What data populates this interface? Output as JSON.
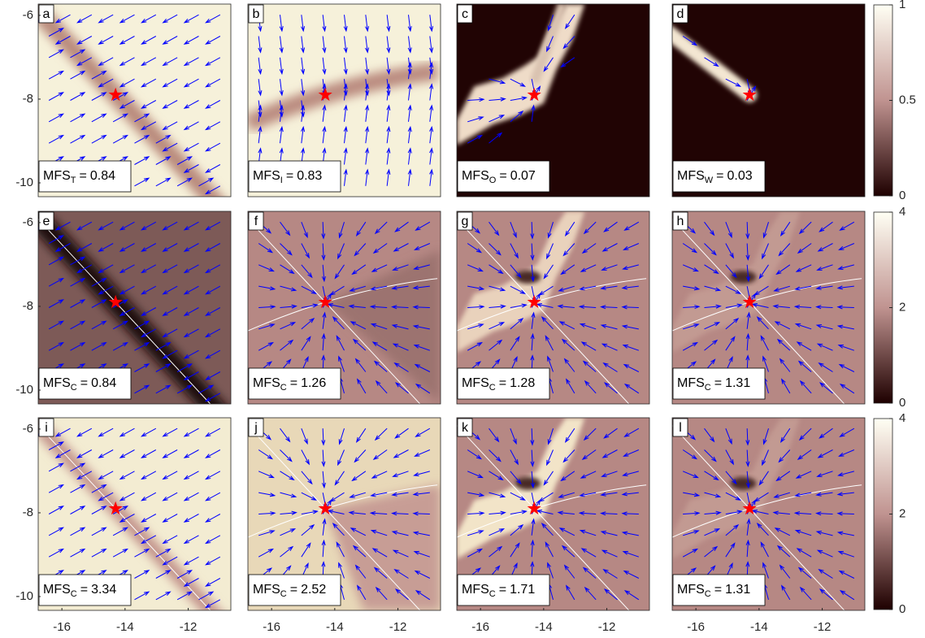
{
  "chart_data": [
    {
      "type": "heatmap",
      "label": "a",
      "annotation": {
        "prefix": "MFS",
        "subscript": "T",
        "sign": "=",
        "value": 0.84
      },
      "xlim": [
        -16.75,
        -10.65
      ],
      "ylim": [
        -10.33,
        -5.73
      ],
      "yticks": [
        -10,
        -8,
        -6
      ],
      "marker": {
        "x": -14.3,
        "y": -7.9,
        "color": "#ff0000"
      },
      "background": "#f6f1da",
      "quiver_color": "#0000ff"
    },
    {
      "type": "heatmap",
      "label": "b",
      "annotation": {
        "prefix": "MFS",
        "subscript": "I",
        "sign": "=",
        "value": 0.83
      },
      "xlim": [
        -16.75,
        -10.65
      ],
      "ylim": [
        -10.33,
        -5.73
      ],
      "marker": {
        "x": -14.3,
        "y": -7.9,
        "color": "#ff0000"
      },
      "background": "#f6f1da",
      "quiver_color": "#0000ff"
    },
    {
      "type": "heatmap",
      "label": "c",
      "annotation": {
        "prefix": "MFS",
        "subscript": "O",
        "sign": "=",
        "value": 0.07
      },
      "xlim": [
        -16.75,
        -10.65
      ],
      "ylim": [
        -10.33,
        -5.73
      ],
      "marker": {
        "x": -14.3,
        "y": -7.9,
        "color": "#ff0000"
      },
      "background": "#210404",
      "quiver_color": "#0000ff"
    },
    {
      "type": "heatmap",
      "label": "d",
      "annotation": {
        "prefix": "MFS",
        "subscript": "W",
        "sign": "=",
        "value": 0.03
      },
      "xlim": [
        -16.75,
        -10.65
      ],
      "ylim": [
        -10.33,
        -5.73
      ],
      "marker": {
        "x": -14.3,
        "y": -7.9,
        "color": "#ff0000"
      },
      "background": "#210404",
      "quiver_color": "#0000ff",
      "colorbar": {
        "clim": [
          0,
          1
        ],
        "ticks": [
          0,
          0.5,
          1
        ],
        "colormap": [
          "#1e0000",
          "#c09390",
          "#fffff4"
        ]
      }
    },
    {
      "type": "heatmap",
      "label": "e",
      "annotation": {
        "prefix": "MFS",
        "subscript": "C",
        "sign": "=",
        "value": 0.84
      },
      "xlim": [
        -16.75,
        -10.65
      ],
      "ylim": [
        -10.33,
        -5.73
      ],
      "yticks": [
        -10,
        -8,
        -6
      ],
      "marker": {
        "x": -14.3,
        "y": -7.9,
        "color": "#ff0000"
      },
      "background": "#7d5a57",
      "quiver_color": "#0000ff"
    },
    {
      "type": "heatmap",
      "label": "f",
      "annotation": {
        "prefix": "MFS",
        "subscript": "C",
        "sign": "=",
        "value": 1.26
      },
      "xlim": [
        -16.75,
        -10.65
      ],
      "ylim": [
        -10.33,
        -5.73
      ],
      "marker": {
        "x": -14.3,
        "y": -7.9,
        "color": "#ff0000"
      },
      "background": "#b68884",
      "quiver_color": "#0000ff"
    },
    {
      "type": "heatmap",
      "label": "g",
      "annotation": {
        "prefix": "MFS",
        "subscript": "C",
        "sign": "=",
        "value": 1.28
      },
      "xlim": [
        -16.75,
        -10.65
      ],
      "ylim": [
        -10.33,
        -5.73
      ],
      "marker": {
        "x": -14.3,
        "y": -7.9,
        "color": "#ff0000"
      },
      "background": "#b68884",
      "quiver_color": "#0000ff"
    },
    {
      "type": "heatmap",
      "label": "h",
      "annotation": {
        "prefix": "MFS",
        "subscript": "C",
        "sign": "=",
        "value": 1.31
      },
      "xlim": [
        -16.75,
        -10.65
      ],
      "ylim": [
        -10.33,
        -5.73
      ],
      "marker": {
        "x": -14.3,
        "y": -7.9,
        "color": "#ff0000"
      },
      "background": "#b68884",
      "quiver_color": "#0000ff",
      "colorbar": {
        "clim": [
          0,
          4
        ],
        "ticks": [
          0,
          2,
          4
        ],
        "colormap": [
          "#1e0000",
          "#c09390",
          "#fffff4"
        ]
      }
    },
    {
      "type": "heatmap",
      "label": "i",
      "annotation": {
        "prefix": "MFS",
        "subscript": "C",
        "sign": "=",
        "value": 3.34
      },
      "xlim": [
        -16.75,
        -10.65
      ],
      "ylim": [
        -10.33,
        -5.73
      ],
      "xticks": [
        -16,
        -14,
        -12
      ],
      "yticks": [
        -10,
        -8,
        -6
      ],
      "marker": {
        "x": -14.3,
        "y": -7.9,
        "color": "#ff0000"
      },
      "background": "#f3ecd2",
      "quiver_color": "#0000ff"
    },
    {
      "type": "heatmap",
      "label": "j",
      "annotation": {
        "prefix": "MFS",
        "subscript": "C",
        "sign": "=",
        "value": 2.52
      },
      "xlim": [
        -16.75,
        -10.65
      ],
      "ylim": [
        -10.33,
        -5.73
      ],
      "xticks": [
        -16,
        -14,
        -12
      ],
      "marker": {
        "x": -14.3,
        "y": -7.9,
        "color": "#ff0000"
      },
      "background": "#e8d8b8",
      "quiver_color": "#0000ff"
    },
    {
      "type": "heatmap",
      "label": "k",
      "annotation": {
        "prefix": "MFS",
        "subscript": "C",
        "sign": "=",
        "value": 1.71
      },
      "xlim": [
        -16.75,
        -10.65
      ],
      "ylim": [
        -10.33,
        -5.73
      ],
      "xticks": [
        -16,
        -14,
        -12
      ],
      "marker": {
        "x": -14.3,
        "y": -7.9,
        "color": "#ff0000"
      },
      "background": "#b68884",
      "quiver_color": "#0000ff"
    },
    {
      "type": "heatmap",
      "label": "l",
      "annotation": {
        "prefix": "MFS",
        "subscript": "C",
        "sign": "=",
        "value": 1.31
      },
      "xlim": [
        -16.75,
        -10.65
      ],
      "ylim": [
        -10.33,
        -5.73
      ],
      "xticks": [
        -16,
        -14,
        -12
      ],
      "marker": {
        "x": -14.3,
        "y": -7.9,
        "color": "#ff0000"
      },
      "background": "#b68884",
      "quiver_color": "#0000ff",
      "colorbar": {
        "clim": [
          0,
          4
        ],
        "ticks": [
          0,
          2,
          4
        ],
        "colormap": [
          "#1e0000",
          "#c09390",
          "#fffff4"
        ]
      }
    }
  ]
}
